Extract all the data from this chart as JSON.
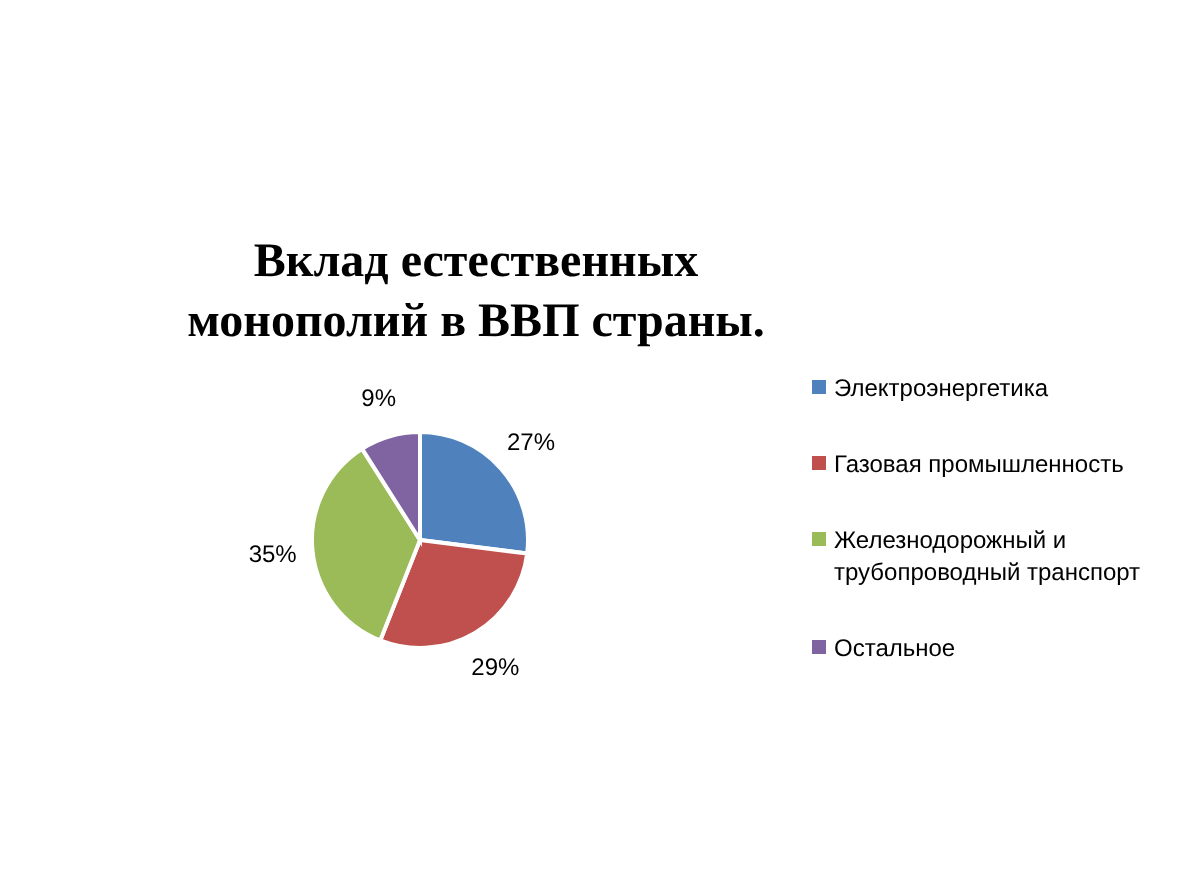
{
  "chart_data": {
    "type": "pie",
    "title": "Вклад естественных монополий в ВВП страны.",
    "categories": [
      "Электроэнергетика",
      "Газовая промышленность",
      "Железнодорожный и трубопроводный транспорт",
      "Остальное"
    ],
    "values": [
      27,
      29,
      35,
      9
    ],
    "colors": [
      "#4f81bd",
      "#c0504d",
      "#9bbb59",
      "#8064a2"
    ],
    "value_labels": [
      "27%",
      "29%",
      "35%",
      "9%"
    ],
    "legend": "right"
  }
}
